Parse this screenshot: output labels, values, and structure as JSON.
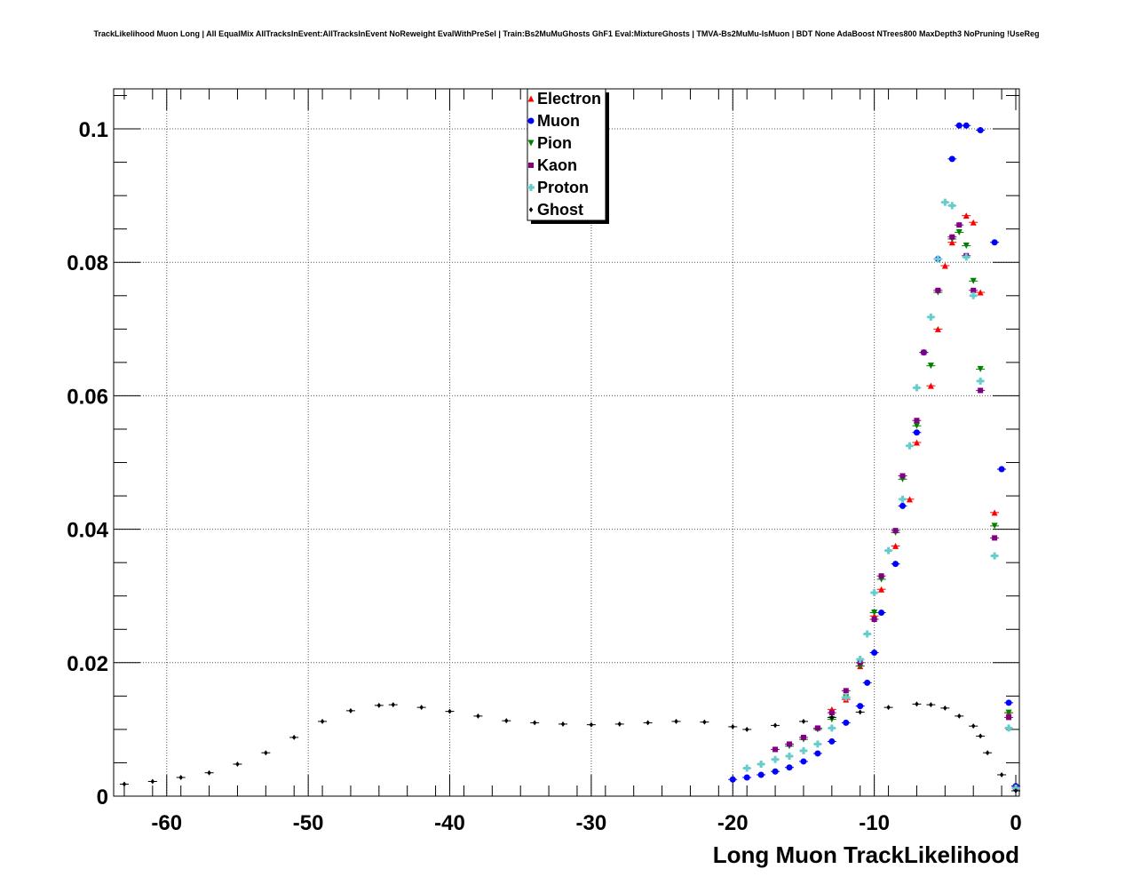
{
  "chart_data": {
    "type": "scatter",
    "title": "TrackLikelihood Muon Long | All EqualMix AllTracksInEvent:AllTracksInEvent NoReweight EvalWithPreSel | Train:Bs2MuMuGhosts GhF1 Eval:MixtureGhosts | TMVA-Bs2MuMu-IsMuon | BDT None AdaBoost NTrees800 MaxDepth3 NoPruning !UseReg",
    "xlabel": "Long Muon TrackLikelihood",
    "ylabel": "",
    "xlim": [
      -63.75,
      0.25
    ],
    "ylim": [
      0,
      0.106
    ],
    "x_ticks": [
      -60,
      -50,
      -40,
      -30,
      -20,
      -10,
      0
    ],
    "x_tick_labels": [
      "-60",
      "-50",
      "-40",
      "-30",
      "-20",
      "-10",
      "0"
    ],
    "y_ticks": [
      0,
      0.02,
      0.04,
      0.06,
      0.08,
      0.1
    ],
    "y_tick_labels": [
      "0",
      "0.02",
      "0.04",
      "0.06",
      "0.08",
      "0.1"
    ],
    "grid": true,
    "legend_position": "top-center",
    "series": [
      {
        "name": "Electron",
        "color": "#ff0000",
        "marker": "triangle-up",
        "points": [
          [
            -13,
            0.013
          ],
          [
            -12,
            0.0145
          ],
          [
            -11,
            0.0195
          ],
          [
            -10,
            0.027
          ],
          [
            -9.5,
            0.031
          ],
          [
            -8.5,
            0.0375
          ],
          [
            -7.5,
            0.0445
          ],
          [
            -7,
            0.053
          ],
          [
            -6,
            0.0615
          ],
          [
            -5.5,
            0.07
          ],
          [
            -5,
            0.0795
          ],
          [
            -4.5,
            0.083
          ],
          [
            -3.5,
            0.087
          ],
          [
            -3,
            0.086
          ],
          [
            -2.5,
            0.0755
          ],
          [
            -1.5,
            0.0425
          ],
          [
            -0.5,
            0.0125
          ],
          [
            0,
            0.0015
          ]
        ]
      },
      {
        "name": "Muon",
        "color": "#0000ff",
        "marker": "circle",
        "points": [
          [
            -20,
            0.0025
          ],
          [
            -19,
            0.0028
          ],
          [
            -18,
            0.0032
          ],
          [
            -17,
            0.0037
          ],
          [
            -16,
            0.0043
          ],
          [
            -15,
            0.0052
          ],
          [
            -14,
            0.0064
          ],
          [
            -13,
            0.0082
          ],
          [
            -12,
            0.011
          ],
          [
            -11,
            0.0135
          ],
          [
            -10.5,
            0.017
          ],
          [
            -10,
            0.0215
          ],
          [
            -9.5,
            0.0275
          ],
          [
            -8.5,
            0.0348
          ],
          [
            -8,
            0.0435
          ],
          [
            -7,
            0.0545
          ],
          [
            -6.5,
            0.0665
          ],
          [
            -5.5,
            0.0805
          ],
          [
            -4.5,
            0.0955
          ],
          [
            -4,
            0.1005
          ],
          [
            -3.5,
            0.1005
          ],
          [
            -2.5,
            0.0998
          ],
          [
            -1.5,
            0.083
          ],
          [
            -1,
            0.049
          ],
          [
            -0.5,
            0.014
          ],
          [
            0,
            0.0015
          ]
        ]
      },
      {
        "name": "Pion",
        "color": "#008000",
        "marker": "triangle-down",
        "points": [
          [
            -16,
            0.0075
          ],
          [
            -15,
            0.0085
          ],
          [
            -14,
            0.01
          ],
          [
            -13,
            0.0115
          ],
          [
            -12,
            0.0148
          ],
          [
            -11,
            0.0195
          ],
          [
            -10,
            0.0275
          ],
          [
            -9.5,
            0.0325
          ],
          [
            -8.5,
            0.0395
          ],
          [
            -8,
            0.0475
          ],
          [
            -7,
            0.0555
          ],
          [
            -6,
            0.0645
          ],
          [
            -5.5,
            0.0755
          ],
          [
            -4.5,
            0.0835
          ],
          [
            -4,
            0.0845
          ],
          [
            -3.5,
            0.0825
          ],
          [
            -3,
            0.0772
          ],
          [
            -2.5,
            0.064
          ],
          [
            -1.5,
            0.0405
          ],
          [
            -0.5,
            0.0125
          ],
          [
            0,
            0.0012
          ]
        ]
      },
      {
        "name": "Kaon",
        "color": "#800080",
        "marker": "square",
        "points": [
          [
            -17,
            0.007
          ],
          [
            -16,
            0.0078
          ],
          [
            -15,
            0.0088
          ],
          [
            -14,
            0.0102
          ],
          [
            -13,
            0.0125
          ],
          [
            -12,
            0.0158
          ],
          [
            -11,
            0.02
          ],
          [
            -10,
            0.0265
          ],
          [
            -9.5,
            0.033
          ],
          [
            -8.5,
            0.0398
          ],
          [
            -8,
            0.048
          ],
          [
            -7,
            0.0563
          ],
          [
            -6.5,
            0.0665
          ],
          [
            -5.5,
            0.0758
          ],
          [
            -4.5,
            0.0838
          ],
          [
            -4,
            0.0856
          ],
          [
            -3.5,
            0.081
          ],
          [
            -3,
            0.0758
          ],
          [
            -2.5,
            0.0608
          ],
          [
            -1.5,
            0.0387
          ],
          [
            -0.5,
            0.0118
          ],
          [
            0,
            0.0012
          ]
        ]
      },
      {
        "name": "Proton",
        "color": "#66cccc",
        "marker": "cross",
        "points": [
          [
            -19,
            0.0042
          ],
          [
            -18,
            0.0048
          ],
          [
            -17,
            0.0055
          ],
          [
            -16,
            0.006
          ],
          [
            -15,
            0.0068
          ],
          [
            -14,
            0.0078
          ],
          [
            -13,
            0.0102
          ],
          [
            -12,
            0.0148
          ],
          [
            -11,
            0.0205
          ],
          [
            -10.5,
            0.0243
          ],
          [
            -10,
            0.0305
          ],
          [
            -9,
            0.0368
          ],
          [
            -8,
            0.0445
          ],
          [
            -7.5,
            0.0525
          ],
          [
            -7,
            0.0612
          ],
          [
            -6,
            0.0718
          ],
          [
            -5.5,
            0.0805
          ],
          [
            -5,
            0.089
          ],
          [
            -4.5,
            0.0885
          ],
          [
            -3.5,
            0.0808
          ],
          [
            -3,
            0.075
          ],
          [
            -2.5,
            0.0622
          ],
          [
            -1.5,
            0.036
          ],
          [
            -0.5,
            0.0102
          ],
          [
            0,
            0.0012
          ]
        ]
      },
      {
        "name": "Ghost",
        "color": "#000000",
        "marker": "diamond",
        "points": [
          [
            -63,
            0.0018
          ],
          [
            -61,
            0.0022
          ],
          [
            -59,
            0.0028
          ],
          [
            -57,
            0.0035
          ],
          [
            -55,
            0.0048
          ],
          [
            -53,
            0.0065
          ],
          [
            -51,
            0.0088
          ],
          [
            -49,
            0.0112
          ],
          [
            -47,
            0.0128
          ],
          [
            -45,
            0.0136
          ],
          [
            -44,
            0.0137
          ],
          [
            -42,
            0.0133
          ],
          [
            -40,
            0.0127
          ],
          [
            -38,
            0.012
          ],
          [
            -36,
            0.0113
          ],
          [
            -34,
            0.011
          ],
          [
            -32,
            0.0108
          ],
          [
            -30,
            0.0107
          ],
          [
            -28,
            0.0108
          ],
          [
            -26,
            0.011
          ],
          [
            -24,
            0.0112
          ],
          [
            -22,
            0.0111
          ],
          [
            -20,
            0.0104
          ],
          [
            -19,
            0.01
          ],
          [
            -17,
            0.0106
          ],
          [
            -15,
            0.0112
          ],
          [
            -13,
            0.0118
          ],
          [
            -11,
            0.0126
          ],
          [
            -9,
            0.0133
          ],
          [
            -7,
            0.0138
          ],
          [
            -6,
            0.0137
          ],
          [
            -5,
            0.0132
          ],
          [
            -4,
            0.012
          ],
          [
            -3,
            0.0105
          ],
          [
            -2.5,
            0.009
          ],
          [
            -2,
            0.0065
          ],
          [
            -1,
            0.0032
          ],
          [
            0,
            0.0008
          ]
        ]
      }
    ]
  }
}
